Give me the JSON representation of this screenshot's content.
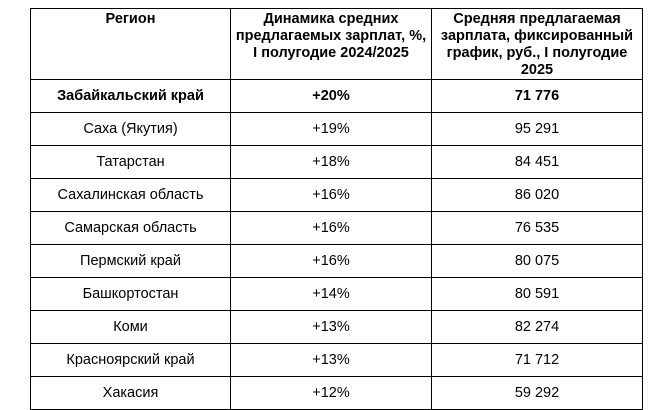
{
  "table": {
    "headers": {
      "region": "Регион",
      "dynamics": "Динамика средних предлагаемых зарплат, %, I полугодие 2024/2025",
      "salary": "Средняя предлагаемая зарплата, фиксированный график, руб., I полугодие 2025"
    },
    "rows": [
      {
        "region": "Забайкальский край",
        "dynamics": "+20%",
        "salary": "71 776",
        "highlighted": true
      },
      {
        "region": "Саха (Якутия)",
        "dynamics": "+19%",
        "salary": "95 291"
      },
      {
        "region": "Татарстан",
        "dynamics": "+18%",
        "salary": "84 451"
      },
      {
        "region": "Сахалинская область",
        "dynamics": "+16%",
        "salary": "86 020"
      },
      {
        "region": "Самарская область",
        "dynamics": "+16%",
        "salary": "76 535"
      },
      {
        "region": "Пермский край",
        "dynamics": "+16%",
        "salary": "80 075"
      },
      {
        "region": "Башкортостан",
        "dynamics": "+14%",
        "salary": "80 591"
      },
      {
        "region": "Коми",
        "dynamics": "+13%",
        "salary": "82 274"
      },
      {
        "region": "Красноярский край",
        "dynamics": "+13%",
        "salary": "71 712"
      },
      {
        "region": "Хакасия",
        "dynamics": "+12%",
        "salary": "59 292"
      }
    ]
  }
}
